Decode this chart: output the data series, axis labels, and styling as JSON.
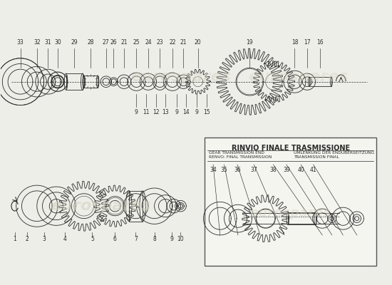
{
  "title": "RINVIO FINALE TRASMISSIONE",
  "sub1a": "GEAR TRANSMISSION END",
  "sub1b": "UMLENKUNG DER ENDÜBERSEITZUNG",
  "sub2a": "RENVO: FINAL TRANSMISSION",
  "sub2b": "TRANSMISSION FINAL",
  "bg_color": "#eeeee8",
  "box_bg": "#f5f5f0",
  "line_color": "#2a2a2a",
  "watermark_color": "#d0d0c0",
  "top_labels": [
    "1",
    "2",
    "3",
    "4",
    "5",
    "6",
    "7",
    "8",
    "9",
    "10"
  ],
  "inset_labels": [
    "34",
    "35",
    "36",
    "37",
    "38",
    "39",
    "40",
    "41"
  ],
  "mid_labels": [
    "9",
    "11",
    "12",
    "13",
    "9",
    "14",
    "9",
    "15"
  ],
  "bot_labels": [
    "33",
    "32",
    "31",
    "30",
    "29",
    "28",
    "27",
    "26",
    "21",
    "25",
    "24",
    "23",
    "22",
    "21",
    "20",
    "19",
    "18",
    "17",
    "16"
  ]
}
